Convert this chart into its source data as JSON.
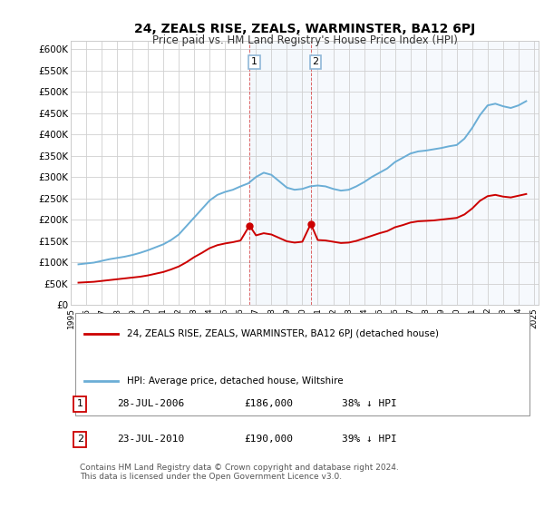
{
  "title": "24, ZEALS RISE, ZEALS, WARMINSTER, BA12 6PJ",
  "subtitle": "Price paid vs. HM Land Registry's House Price Index (HPI)",
  "ylabel_ticks": [
    "£0",
    "£50K",
    "£100K",
    "£150K",
    "£200K",
    "£250K",
    "£300K",
    "£350K",
    "£400K",
    "£450K",
    "£500K",
    "£550K",
    "£600K"
  ],
  "ytick_values": [
    0,
    50000,
    100000,
    150000,
    200000,
    250000,
    300000,
    350000,
    400000,
    450000,
    500000,
    550000,
    600000
  ],
  "ylim": [
    0,
    620000
  ],
  "hpi_color": "#6baed6",
  "price_color": "#cc0000",
  "shade_color": "#ddeeff",
  "sale1_x": 2006.58,
  "sale1_date": "28-JUL-2006",
  "sale1_price": 186000,
  "sale1_pct": "38%",
  "sale2_x": 2010.55,
  "sale2_date": "23-JUL-2010",
  "sale2_price": 190000,
  "sale2_pct": "39%",
  "legend_label_price": "24, ZEALS RISE, ZEALS, WARMINSTER, BA12 6PJ (detached house)",
  "legend_label_hpi": "HPI: Average price, detached house, Wiltshire",
  "footer": "Contains HM Land Registry data © Crown copyright and database right 2024.\nThis data is licensed under the Open Government Licence v3.0.",
  "xlim_start": 1995.2,
  "xlim_end": 2025.3
}
